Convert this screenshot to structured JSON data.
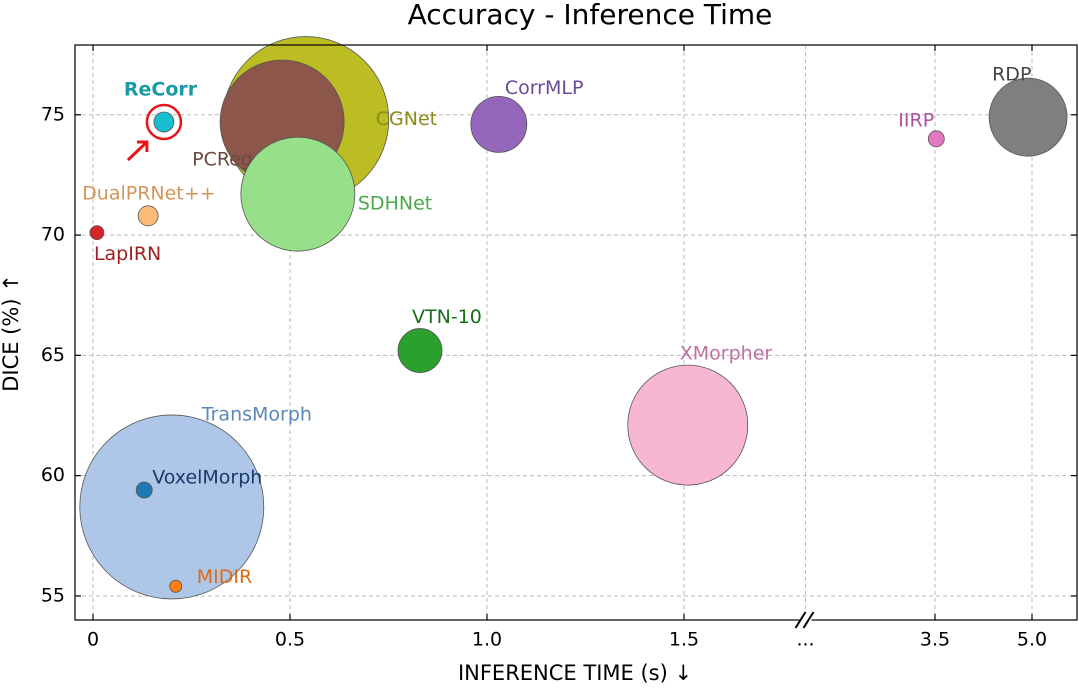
{
  "chart_data": {
    "type": "bubble",
    "title": "Accuracy - Inference Time",
    "x_label": "INFERENCE TIME (s) ↓",
    "y_label": "DICE (%) ↑",
    "xlim": [
      -0.05,
      5.7
    ],
    "ylim": [
      54.0,
      77.9
    ],
    "xticks": [
      0,
      {
        "value": 0.5,
        "label": "0.5"
      },
      {
        "value": 1.0,
        "label": "1.0"
      },
      {
        "value": 1.5,
        "label": "1.5"
      },
      {
        "value": 3.5,
        "label": "3.5"
      },
      {
        "value": 5.0,
        "label": "5.0"
      }
    ],
    "x_break_label": "...",
    "yticks": [
      55,
      60,
      65,
      70,
      75
    ],
    "grid": true,
    "points": [
      {
        "name": "TransMorph",
        "color": "#aec7e8",
        "label_color": "#5a88b8",
        "x": 0.2,
        "y": 58.7,
        "size": 92
      },
      {
        "name": "CGNet",
        "color": "#bcbd22",
        "label_color": "#8b8b1a",
        "x": 0.54,
        "y": 74.8,
        "size": 83
      },
      {
        "name": "PCReg",
        "color": "#8c564b",
        "label_color": "#6b4a3e",
        "x": 0.48,
        "y": 74.7,
        "size": 62
      },
      {
        "name": "SDHNet",
        "color": "#98df8a",
        "label_color": "#4aa84a",
        "x": 0.52,
        "y": 71.7,
        "size": 57
      },
      {
        "name": "XMorpher",
        "color": "#f7b6d2",
        "label_color": "#c070a0",
        "x": 1.53,
        "y": 62.1,
        "size": 60
      },
      {
        "name": "RDP",
        "color": "#7f7f7f",
        "label_color": "#444444",
        "x": 4.94,
        "y": 74.9,
        "size": 39
      },
      {
        "name": "CorrMLP",
        "color": "#9467bd",
        "label_color": "#6a4a9a",
        "x": 1.03,
        "y": 74.6,
        "size": 28
      },
      {
        "name": "VTN-10",
        "color": "#2ca02c",
        "label_color": "#1a6e1a",
        "x": 0.83,
        "y": 65.2,
        "size": 22
      },
      {
        "name": "IIRP",
        "color": "#e377c2",
        "label_color": "#b050a0",
        "x": 3.52,
        "y": 74.0,
        "size": 8
      },
      {
        "name": "DualPRNet++",
        "color": "#ffbb78",
        "label_color": "#d4955a",
        "x": 0.14,
        "y": 70.8,
        "size": 10
      },
      {
        "name": "LapIRN",
        "color": "#d62728",
        "label_color": "#a02020",
        "x": 0.01,
        "y": 70.1,
        "size": 7
      },
      {
        "name": "VoxelMorph",
        "color": "#1f77b4",
        "label_color": "#1a3a6a",
        "x": 0.13,
        "y": 59.4,
        "size": 8
      },
      {
        "name": "MIDIR",
        "color": "#ff7f0e",
        "label_color": "#e06a10",
        "x": 0.21,
        "y": 55.4,
        "size": 6
      },
      {
        "name": "ReCorr",
        "color": "#17becf",
        "label_color": "#1a9aa8",
        "x": 0.18,
        "y": 74.7,
        "size": 10,
        "highlight": true
      }
    ]
  }
}
